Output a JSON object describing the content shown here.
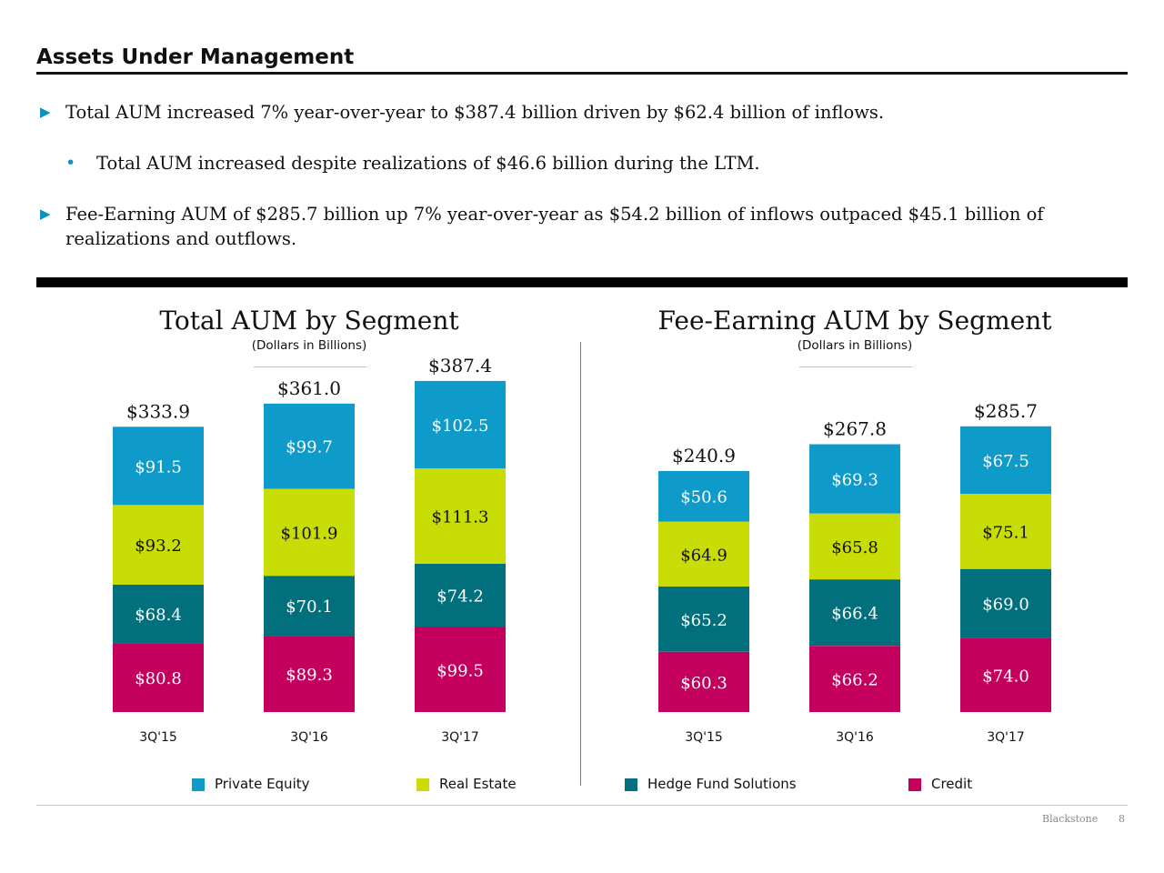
{
  "page": {
    "title": "Assets Under Management",
    "bullets": [
      {
        "level": 1,
        "text": "Total AUM increased 7% year-over-year to $387.4 billion driven by $62.4 billion of inflows."
      },
      {
        "level": 2,
        "text": "Total AUM increased despite realizations of $46.6 billion during the LTM."
      },
      {
        "level": 1,
        "text": "Fee-Earning AUM of $285.7 billion up 7% year-over-year as $54.2 billion of inflows outpaced $45.1 billion of realizations and outflows."
      }
    ],
    "bullet_markers": {
      "level1": "▶",
      "level2": "•"
    }
  },
  "legend": {
    "items": [
      {
        "label": "Private Equity",
        "color": "#0f9bc9"
      },
      {
        "label": "Real Estate",
        "color": "#c8dc05"
      },
      {
        "label": "Hedge Fund Solutions",
        "color": "#01707c"
      },
      {
        "label": "Credit",
        "color": "#c4005e"
      }
    ]
  },
  "footer": {
    "brand": "Blackstone",
    "page_number": "8"
  },
  "chart_data": [
    {
      "type": "bar",
      "stacked": true,
      "title": "Total AUM by Segment",
      "subtitle": "(Dollars in Billions)",
      "categories": [
        "3Q'15",
        "3Q'16",
        "3Q'17"
      ],
      "totals": [
        333.9,
        361.0,
        387.4
      ],
      "total_labels": [
        "$333.9",
        "$361.0",
        "$387.4"
      ],
      "series": [
        {
          "name": "Credit",
          "color": "#c4005e",
          "values": [
            80.8,
            89.3,
            99.5
          ],
          "labels": [
            "$80.8",
            "$89.3",
            "$99.5"
          ]
        },
        {
          "name": "Hedge Fund Solutions",
          "color": "#01707c",
          "values": [
            68.4,
            70.1,
            74.2
          ],
          "labels": [
            "$68.4",
            "$70.1",
            "$74.2"
          ]
        },
        {
          "name": "Real Estate",
          "color": "#c8dc05",
          "values": [
            93.2,
            101.9,
            111.3
          ],
          "labels": [
            "$93.2",
            "$101.9",
            "$111.3"
          ]
        },
        {
          "name": "Private Equity",
          "color": "#0f9bc9",
          "values": [
            91.5,
            99.7,
            102.5
          ],
          "labels": [
            "$91.5",
            "$99.7",
            "$102.5"
          ]
        }
      ],
      "legend": "bottom",
      "grid": false
    },
    {
      "type": "bar",
      "stacked": true,
      "title": "Fee-Earning AUM by Segment",
      "subtitle": "(Dollars in Billions)",
      "categories": [
        "3Q'15",
        "3Q'16",
        "3Q'17"
      ],
      "totals": [
        240.9,
        267.8,
        285.7
      ],
      "total_labels": [
        "$240.9",
        "$267.8",
        "$285.7"
      ],
      "series": [
        {
          "name": "Credit",
          "color": "#c4005e",
          "values": [
            60.3,
            66.2,
            74.0
          ],
          "labels": [
            "$60.3",
            "$66.2",
            "$74.0"
          ]
        },
        {
          "name": "Hedge Fund Solutions",
          "color": "#01707c",
          "values": [
            65.2,
            66.4,
            69.0
          ],
          "labels": [
            "$65.2",
            "$66.4",
            "$69.0"
          ]
        },
        {
          "name": "Real Estate",
          "color": "#c8dc05",
          "values": [
            64.9,
            65.8,
            75.1
          ],
          "labels": [
            "$64.9",
            "$65.8",
            "$75.1"
          ]
        },
        {
          "name": "Private Equity",
          "color": "#0f9bc9",
          "values": [
            50.6,
            69.3,
            67.5
          ],
          "labels": [
            "$50.6",
            "$69.3",
            "$67.5"
          ]
        }
      ],
      "legend": "bottom",
      "grid": false
    }
  ]
}
